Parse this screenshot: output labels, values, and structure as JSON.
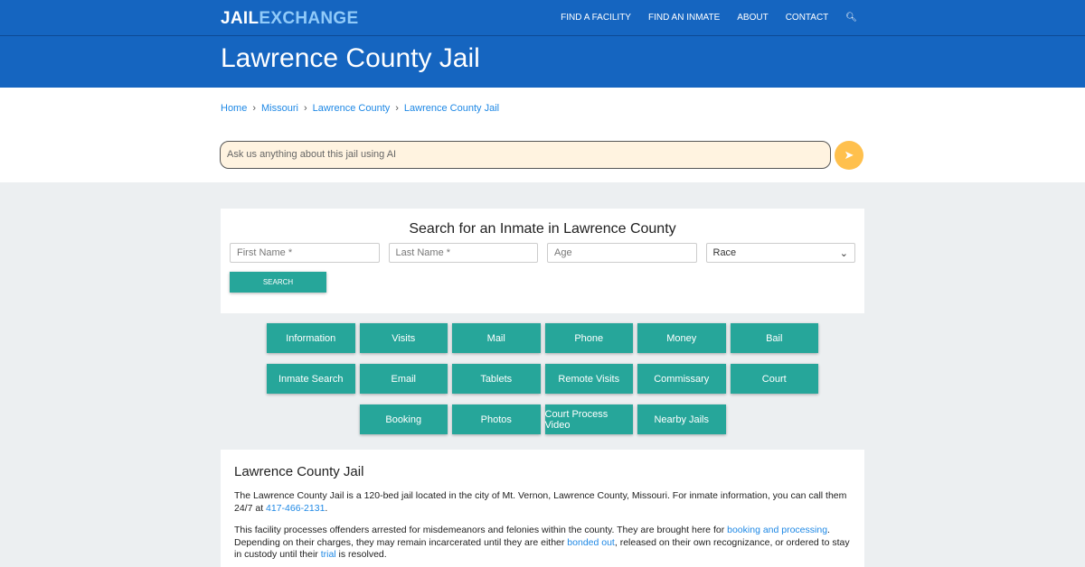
{
  "nav": {
    "logo_a": "JAIL",
    "logo_b": "EXCHANGE",
    "items": [
      "FIND A FACILITY",
      "FIND AN INMATE",
      "ABOUT",
      "CONTACT"
    ],
    "search_icon": "search-icon"
  },
  "hero": {
    "title": "Lawrence County Jail"
  },
  "breadcrumb": [
    "Home",
    "Missouri",
    "Lawrence County",
    "Lawrence County Jail"
  ],
  "ai": {
    "placeholder": "Ask us anything about this jail using AI",
    "send_icon": "paper-plane-icon"
  },
  "search": {
    "title": "Search for an Inmate in Lawrence County",
    "first": "First Name *",
    "last": "Last Name *",
    "age": "Age",
    "race": "Race",
    "button": "SEARCH"
  },
  "buttons": [
    "Information",
    "Visits",
    "Mail",
    "Phone",
    "Money",
    "Bail",
    "Inmate Search",
    "Email",
    "Tablets",
    "Remote Visits",
    "Commissary",
    "Court",
    "Booking",
    "Photos",
    "Court Process Video",
    "Nearby Jails"
  ],
  "about": {
    "title": "Lawrence County Jail",
    "p1a": "The Lawrence County Jail is a 120-bed jail located in the city of Mt. Vernon, Lawrence County, Missouri. For inmate information, you can call them 24/7 at ",
    "phone": "417-466-2131",
    "p1b": ".",
    "p2a": "This facility processes offenders arrested for misdemeanors and felonies within the county. They are brought here for ",
    "link1": "booking and processing",
    "p2b": ". Depending on their charges, they may remain incarcerated until they are either ",
    "link2": "bonded out",
    "p2c": ", released on their own recognizance, or ordered to stay in custody until their ",
    "link3": "trial",
    "p2d": " is resolved."
  },
  "colors": {
    "primary": "#1565c0",
    "teal": "#26a69a",
    "link": "#1e88e5",
    "send": "#ffc04d"
  }
}
